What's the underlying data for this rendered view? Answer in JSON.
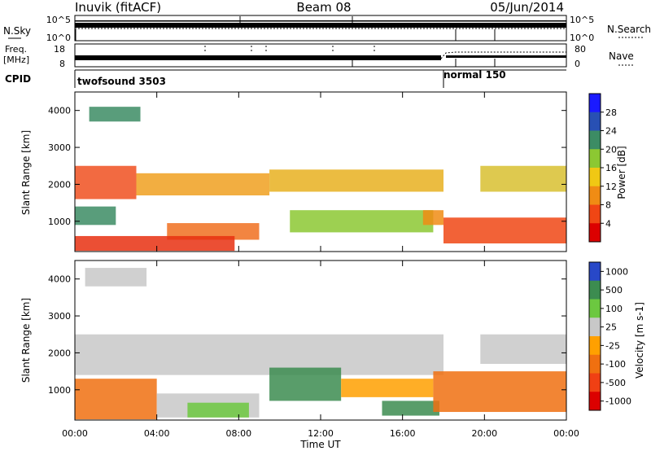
{
  "header": {
    "station": "Inuvik (fitACF)",
    "beam": "Beam 08",
    "date": "05/Jun/2014"
  },
  "top_panels": {
    "nsky_label": "N.Sky",
    "nsky_ticks": [
      "10^5",
      "10^0"
    ],
    "nsearch_label": "N.Search",
    "nsearch_ticks": [
      "10^5",
      "10^0"
    ],
    "freq_label_1": "Freq.",
    "freq_label_2": "[MHz]",
    "freq_ticks": [
      "18",
      "8"
    ],
    "nave_label": "Nave",
    "nave_ticks": [
      "80",
      "0"
    ],
    "cpid_label": "CPID",
    "cpid_segments": [
      {
        "label": "twofsound 3503",
        "start_hour": 0,
        "end_hour": 18
      },
      {
        "label": "normal 150",
        "start_hour": 18,
        "end_hour": 24
      }
    ]
  },
  "chart_data": [
    {
      "type": "heatmap",
      "panel": "power",
      "xlabel": "",
      "ylabel": "Slant Range [km]",
      "xlim": [
        0,
        24
      ],
      "ylim": [
        180,
        4500
      ],
      "yticks": [
        "1000",
        "2000",
        "3000",
        "4000"
      ],
      "colorbar": {
        "label": "Power [dB]",
        "ticks": [
          "4",
          "8",
          "12",
          "16",
          "20",
          "24",
          "28"
        ],
        "colors": [
          "#1a1aff",
          "#2850b4",
          "#3c8c64",
          "#8cc832",
          "#f0c814",
          "#f08c14",
          "#f04614",
          "#dc0000"
        ]
      },
      "bands": [
        {
          "start_hour": 0.0,
          "end_hour": 3.0,
          "range_low": 1600,
          "range_high": 2500,
          "color": "#f05020"
        },
        {
          "start_hour": 3.0,
          "end_hour": 9.5,
          "range_low": 1700,
          "range_high": 2300,
          "color": "#f0a020"
        },
        {
          "start_hour": 9.5,
          "end_hour": 18.0,
          "range_low": 1800,
          "range_high": 2400,
          "color": "#e8b020"
        },
        {
          "start_hour": 19.8,
          "end_hour": 24.0,
          "range_low": 1800,
          "range_high": 2500,
          "color": "#d8c030"
        },
        {
          "start_hour": 0.0,
          "end_hour": 2.0,
          "range_low": 900,
          "range_high": 1400,
          "color": "#3c8c64"
        },
        {
          "start_hour": 4.5,
          "end_hour": 9.0,
          "range_low": 500,
          "range_high": 950,
          "color": "#f07020"
        },
        {
          "start_hour": 0.0,
          "end_hour": 7.8,
          "range_low": 200,
          "range_high": 600,
          "color": "#e83010"
        },
        {
          "start_hour": 10.5,
          "end_hour": 17.5,
          "range_low": 700,
          "range_high": 1300,
          "color": "#8cc832"
        },
        {
          "start_hour": 17.0,
          "end_hour": 18.0,
          "range_low": 900,
          "range_high": 1300,
          "color": "#f08c14"
        },
        {
          "start_hour": 18.0,
          "end_hour": 24.0,
          "range_low": 400,
          "range_high": 1100,
          "color": "#f04614"
        },
        {
          "start_hour": 0.7,
          "end_hour": 3.2,
          "range_low": 3700,
          "range_high": 4100,
          "color": "#3c8c64"
        }
      ]
    },
    {
      "type": "heatmap",
      "panel": "velocity",
      "xlabel": "Time UT",
      "ylabel": "Slant Range [km]",
      "xlim": [
        0,
        24
      ],
      "ylim": [
        180,
        4500
      ],
      "xticks": [
        "00:00",
        "04:00",
        "08:00",
        "12:00",
        "16:00",
        "20:00",
        "00:00"
      ],
      "yticks": [
        "1000",
        "2000",
        "3000",
        "4000"
      ],
      "colorbar": {
        "label": "Velocity [m s-1]",
        "ticks": [
          "1000",
          "500",
          "100",
          "25",
          "-25",
          "-100",
          "-500",
          "-1000"
        ],
        "colors": [
          "#2848c8",
          "#3c8c50",
          "#6cc840",
          "#c8c8c8",
          "#ffa000",
          "#f07010",
          "#f04014",
          "#dc0000"
        ]
      },
      "bands": [
        {
          "start_hour": 0.0,
          "end_hour": 18.0,
          "range_low": 1400,
          "range_high": 2500,
          "color": "#c8c8c8"
        },
        {
          "start_hour": 19.8,
          "end_hour": 24.0,
          "range_low": 1700,
          "range_high": 2500,
          "color": "#c8c8c8"
        },
        {
          "start_hour": 0.0,
          "end_hour": 4.0,
          "range_low": 200,
          "range_high": 1300,
          "color": "#f07010"
        },
        {
          "start_hour": 4.0,
          "end_hour": 9.0,
          "range_low": 250,
          "range_high": 900,
          "color": "#c8c8c8"
        },
        {
          "start_hour": 5.5,
          "end_hour": 8.5,
          "range_low": 250,
          "range_high": 650,
          "color": "#6cc840"
        },
        {
          "start_hour": 9.5,
          "end_hour": 13.0,
          "range_low": 700,
          "range_high": 1600,
          "color": "#3c8c50"
        },
        {
          "start_hour": 13.0,
          "end_hour": 17.5,
          "range_low": 800,
          "range_high": 1300,
          "color": "#ffa000"
        },
        {
          "start_hour": 15.0,
          "end_hour": 17.8,
          "range_low": 300,
          "range_high": 700,
          "color": "#3c8c50"
        },
        {
          "start_hour": 17.5,
          "end_hour": 24.0,
          "range_low": 400,
          "range_high": 1500,
          "color": "#f07010"
        },
        {
          "start_hour": 0.5,
          "end_hour": 3.5,
          "range_low": 3800,
          "range_high": 4300,
          "color": "#c8c8c8"
        }
      ]
    }
  ]
}
